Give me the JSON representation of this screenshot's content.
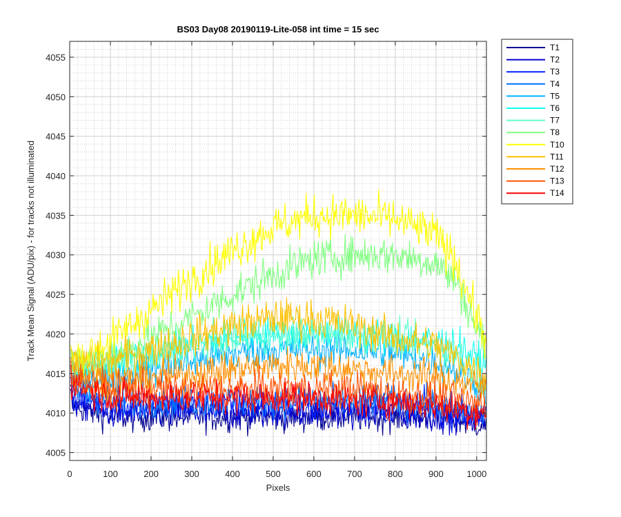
{
  "chart_data": {
    "type": "line",
    "title": "BS03 Day08 20190119-Lite-058 int time = 15 sec",
    "xlabel": "Pixels",
    "ylabel": "Track Mean Signal (ADU/pix) - for tracks not illuminated",
    "xlim": [
      0,
      1024
    ],
    "ylim": [
      4004,
      4057
    ],
    "xticks": [
      0,
      100,
      200,
      300,
      400,
      500,
      600,
      700,
      800,
      900,
      1000
    ],
    "yticks": [
      4005,
      4010,
      4015,
      4020,
      4025,
      4030,
      4035,
      4040,
      4045,
      4050,
      4055
    ],
    "grid": true,
    "minor_grid": true,
    "legend_position": "outside-top-right",
    "x_sample_points": [
      0,
      100,
      200,
      300,
      400,
      500,
      600,
      700,
      800,
      900,
      950,
      1024
    ],
    "series": [
      {
        "name": "T1",
        "color": "#00008f",
        "noise": 1.0,
        "values": [
          4011,
          4009.5,
          4009.5,
          4009.5,
          4009.5,
          4009.5,
          4009.5,
          4009.5,
          4009.5,
          4009.5,
          4009,
          4008.5
        ]
      },
      {
        "name": "T2",
        "color": "#0000d0",
        "noise": 1.0,
        "values": [
          4011.5,
          4010,
          4010,
          4010,
          4010,
          4010,
          4010,
          4010,
          4010,
          4009.5,
          4009.5,
          4009
        ]
      },
      {
        "name": "T3",
        "color": "#0020ff",
        "noise": 1.1,
        "values": [
          4012.5,
          4011,
          4011,
          4011,
          4011,
          4011,
          4011,
          4011,
          4011,
          4010.5,
          4010,
          4009.5
        ]
      },
      {
        "name": "T4",
        "color": "#0070ff",
        "noise": 1.1,
        "values": [
          4013,
          4011.5,
          4011.5,
          4011.5,
          4011.5,
          4011.5,
          4011.5,
          4011.5,
          4011.5,
          4011,
          4010.5,
          4010
        ]
      },
      {
        "name": "T5",
        "color": "#00b0ff",
        "noise": 1.2,
        "values": [
          4014,
          4014.5,
          4015.5,
          4016.5,
          4017.5,
          4018,
          4018,
          4018,
          4017.5,
          4016.5,
          4015.5,
          4013
        ]
      },
      {
        "name": "T6",
        "color": "#10ffef",
        "noise": 1.2,
        "values": [
          4015,
          4016,
          4017.5,
          4018.5,
          4019.5,
          4020,
          4020,
          4020,
          4019.5,
          4019,
          4018.5,
          4016
        ]
      },
      {
        "name": "T7",
        "color": "#60ffd0",
        "noise": 1.2,
        "values": [
          4016,
          4016.5,
          4017.5,
          4018.5,
          4019.5,
          4020,
          4020,
          4020,
          4019.5,
          4018.5,
          4017.5,
          4014
        ]
      },
      {
        "name": "T8",
        "color": "#80ff80",
        "noise": 1.3,
        "values": [
          4016,
          4017,
          4019.5,
          4022,
          4025,
          4027.5,
          4029.5,
          4030,
          4030,
          4029,
          4026.5,
          4018
        ]
      },
      {
        "name": "T10",
        "color": "#ffff00",
        "noise": 1.4,
        "values": [
          4016.5,
          4019,
          4023,
          4027,
          4030.5,
          4033.5,
          4035,
          4035,
          4034.5,
          4032.5,
          4029,
          4019
        ]
      },
      {
        "name": "T11",
        "color": "#ffc000",
        "noise": 1.3,
        "values": [
          4016,
          4016.5,
          4018,
          4019.5,
          4021,
          4022,
          4022,
          4021,
          4019.5,
          4018.5,
          4017,
          4014.5
        ]
      },
      {
        "name": "T12",
        "color": "#ff9000",
        "noise": 1.2,
        "values": [
          4015,
          4014,
          4014.5,
          4015,
          4015.5,
          4016,
          4016,
          4015.5,
          4015,
          4014.5,
          4014,
          4013
        ]
      },
      {
        "name": "T13",
        "color": "#ff5000",
        "noise": 1.2,
        "values": [
          4014.5,
          4013,
          4013,
          4013,
          4013,
          4013,
          4013,
          4013,
          4012.5,
          4012,
          4011.5,
          4011
        ]
      },
      {
        "name": "T14",
        "color": "#ff0000",
        "noise": 1.1,
        "values": [
          4014,
          4012,
          4012,
          4012,
          4012,
          4012,
          4012,
          4011.5,
          4011.5,
          4011,
          4010.5,
          4010
        ]
      }
    ]
  }
}
